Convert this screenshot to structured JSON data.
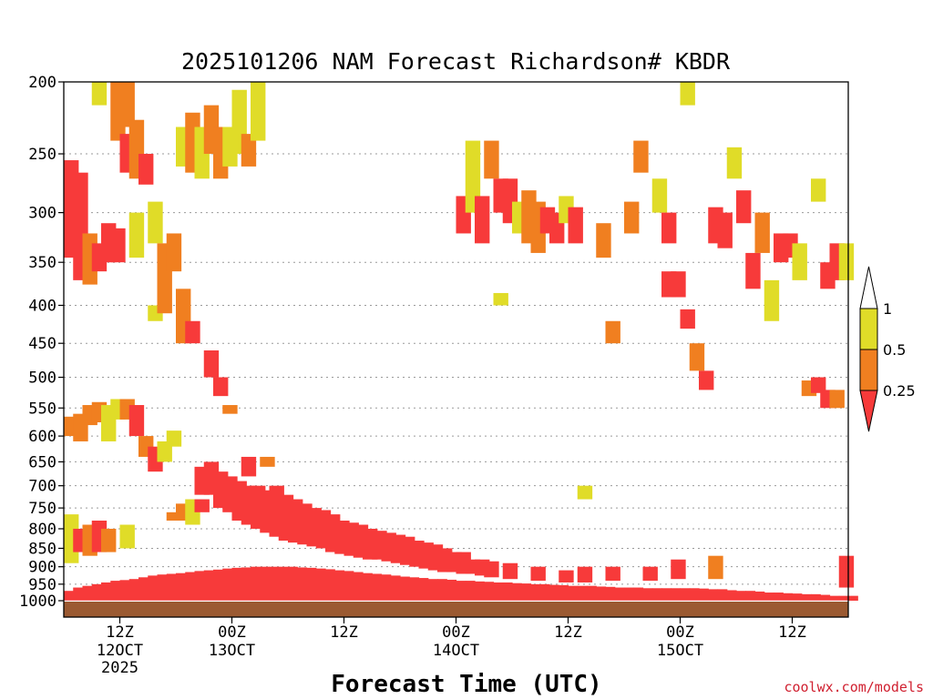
{
  "chart_data": {
    "type": "heatmap",
    "title": "2025101206 NAM Forecast Richardson# KBDR",
    "xlabel": "Forecast Time (UTC)",
    "ylabel": "",
    "credit": "coolwx.com/models",
    "y_axis": {
      "scale": "pressure (hPa), inverted",
      "ylim": [
        1000,
        200
      ],
      "ticks": [
        "200",
        "250",
        "300",
        "350",
        "400",
        "450",
        "500",
        "550",
        "600",
        "650",
        "700",
        "750",
        "800",
        "850",
        "900",
        "950",
        "1000"
      ],
      "tick_values": [
        200,
        250,
        300,
        350,
        400,
        450,
        500,
        550,
        600,
        650,
        700,
        750,
        800,
        850,
        900,
        950,
        1000
      ]
    },
    "x_axis": {
      "xlim_hours": [
        0,
        84
      ],
      "ticks": [
        {
          "hour": 6,
          "label": "12Z",
          "sub": "12OCT",
          "sub2": "2025"
        },
        {
          "hour": 18,
          "label": "00Z",
          "sub": "13OCT"
        },
        {
          "hour": 30,
          "label": "12Z"
        },
        {
          "hour": 42,
          "label": "00Z",
          "sub": "14OCT"
        },
        {
          "hour": 54,
          "label": "12Z"
        },
        {
          "hour": 66,
          "label": "00Z",
          "sub": "15OCT"
        },
        {
          "hour": 78,
          "label": "12Z"
        }
      ]
    },
    "legend": {
      "position": "right",
      "labels": [
        "1",
        "0.5",
        "0.25"
      ],
      "levels": [
        1,
        0.5,
        0.25
      ],
      "colors": [
        "#ffffff",
        "#e0dc28",
        "#f07f20",
        "#f73a3a"
      ]
    },
    "categories_colors": {
      "yellow": "#e0dc28",
      "orange": "#f07f20",
      "red": "#f73a3a",
      "ground": "#9b5a32"
    },
    "cells": [
      {
        "t": 0,
        "p1": 255,
        "p2": 345,
        "c": "red"
      },
      {
        "t": 0,
        "p1": 565,
        "p2": 600,
        "c": "orange"
      },
      {
        "t": 0,
        "p1": 765,
        "p2": 890,
        "c": "yellow"
      },
      {
        "t": 1,
        "p1": 265,
        "p2": 370,
        "c": "red"
      },
      {
        "t": 1,
        "p1": 560,
        "p2": 610,
        "c": "orange"
      },
      {
        "t": 1,
        "p1": 800,
        "p2": 860,
        "c": "red"
      },
      {
        "t": 2,
        "p1": 320,
        "p2": 375,
        "c": "orange"
      },
      {
        "t": 2,
        "p1": 545,
        "p2": 580,
        "c": "orange"
      },
      {
        "t": 2,
        "p1": 790,
        "p2": 870,
        "c": "orange"
      },
      {
        "t": 3,
        "p1": 200,
        "p2": 215,
        "c": "yellow"
      },
      {
        "t": 3,
        "p1": 330,
        "p2": 360,
        "c": "red"
      },
      {
        "t": 3,
        "p1": 540,
        "p2": 575,
        "c": "orange"
      },
      {
        "t": 3,
        "p1": 780,
        "p2": 860,
        "c": "red"
      },
      {
        "t": 4,
        "p1": 310,
        "p2": 350,
        "c": "red"
      },
      {
        "t": 4,
        "p1": 545,
        "p2": 610,
        "c": "yellow"
      },
      {
        "t": 4,
        "p1": 800,
        "p2": 860,
        "c": "orange"
      },
      {
        "t": 5,
        "p1": 200,
        "p2": 240,
        "c": "orange"
      },
      {
        "t": 5,
        "p1": 315,
        "p2": 350,
        "c": "red"
      },
      {
        "t": 5,
        "p1": 535,
        "p2": 570,
        "c": "yellow"
      },
      {
        "t": 6,
        "p1": 200,
        "p2": 230,
        "c": "orange"
      },
      {
        "t": 6,
        "p1": 235,
        "p2": 265,
        "c": "red"
      },
      {
        "t": 6,
        "p1": 535,
        "p2": 570,
        "c": "orange"
      },
      {
        "t": 6,
        "p1": 790,
        "p2": 850,
        "c": "yellow"
      },
      {
        "t": 7,
        "p1": 225,
        "p2": 270,
        "c": "orange"
      },
      {
        "t": 7,
        "p1": 545,
        "p2": 600,
        "c": "red"
      },
      {
        "t": 7,
        "p1": 300,
        "p2": 345,
        "c": "yellow"
      },
      {
        "t": 8,
        "p1": 250,
        "p2": 275,
        "c": "red"
      },
      {
        "t": 8,
        "p1": 600,
        "p2": 640,
        "c": "orange"
      },
      {
        "t": 9,
        "p1": 290,
        "p2": 330,
        "c": "yellow"
      },
      {
        "t": 9,
        "p1": 400,
        "p2": 420,
        "c": "yellow"
      },
      {
        "t": 9,
        "p1": 620,
        "p2": 670,
        "c": "red"
      },
      {
        "t": 10,
        "p1": 330,
        "p2": 410,
        "c": "orange"
      },
      {
        "t": 10,
        "p1": 610,
        "p2": 650,
        "c": "yellow"
      },
      {
        "t": 11,
        "p1": 320,
        "p2": 360,
        "c": "orange"
      },
      {
        "t": 11,
        "p1": 590,
        "p2": 620,
        "c": "yellow"
      },
      {
        "t": 11,
        "p1": 760,
        "p2": 780,
        "c": "orange"
      },
      {
        "t": 12,
        "p1": 230,
        "p2": 260,
        "c": "yellow"
      },
      {
        "t": 12,
        "p1": 380,
        "p2": 450,
        "c": "orange"
      },
      {
        "t": 12,
        "p1": 740,
        "p2": 780,
        "c": "orange"
      },
      {
        "t": 13,
        "p1": 220,
        "p2": 265,
        "c": "orange"
      },
      {
        "t": 13,
        "p1": 420,
        "p2": 450,
        "c": "red"
      },
      {
        "t": 13,
        "p1": 730,
        "p2": 790,
        "c": "yellow"
      },
      {
        "t": 14,
        "p1": 230,
        "p2": 270,
        "c": "yellow"
      },
      {
        "t": 14,
        "p1": 660,
        "p2": 720,
        "c": "red"
      },
      {
        "t": 14,
        "p1": 730,
        "p2": 760,
        "c": "red"
      },
      {
        "t": 15,
        "p1": 215,
        "p2": 250,
        "c": "orange"
      },
      {
        "t": 15,
        "p1": 460,
        "p2": 500,
        "c": "red"
      },
      {
        "t": 15,
        "p1": 650,
        "p2": 720,
        "c": "red"
      },
      {
        "t": 16,
        "p1": 230,
        "p2": 270,
        "c": "orange"
      },
      {
        "t": 16,
        "p1": 500,
        "p2": 530,
        "c": "red"
      },
      {
        "t": 16,
        "p1": 670,
        "p2": 750,
        "c": "red"
      },
      {
        "t": 17,
        "p1": 230,
        "p2": 260,
        "c": "yellow"
      },
      {
        "t": 17,
        "p1": 545,
        "p2": 560,
        "c": "orange"
      },
      {
        "t": 17,
        "p1": 680,
        "p2": 760,
        "c": "red"
      },
      {
        "t": 18,
        "p1": 205,
        "p2": 250,
        "c": "yellow"
      },
      {
        "t": 18,
        "p1": 690,
        "p2": 780,
        "c": "red"
      },
      {
        "t": 19,
        "p1": 235,
        "p2": 260,
        "c": "orange"
      },
      {
        "t": 19,
        "p1": 640,
        "p2": 680,
        "c": "red"
      },
      {
        "t": 19,
        "p1": 700,
        "p2": 790,
        "c": "red"
      },
      {
        "t": 20,
        "p1": 200,
        "p2": 240,
        "c": "yellow"
      },
      {
        "t": 20,
        "p1": 700,
        "p2": 800,
        "c": "red"
      },
      {
        "t": 21,
        "p1": 640,
        "p2": 660,
        "c": "orange"
      },
      {
        "t": 21,
        "p1": 710,
        "p2": 810,
        "c": "red"
      },
      {
        "t": 22,
        "p1": 700,
        "p2": 820,
        "c": "red"
      },
      {
        "t": 23,
        "p1": 720,
        "p2": 830,
        "c": "red"
      },
      {
        "t": 24,
        "p1": 730,
        "p2": 835,
        "c": "red"
      },
      {
        "t": 25,
        "p1": 740,
        "p2": 840,
        "c": "red"
      },
      {
        "t": 26,
        "p1": 750,
        "p2": 845,
        "c": "red"
      },
      {
        "t": 27,
        "p1": 755,
        "p2": 850,
        "c": "red"
      },
      {
        "t": 28,
        "p1": 765,
        "p2": 860,
        "c": "red"
      },
      {
        "t": 29,
        "p1": 780,
        "p2": 865,
        "c": "red"
      },
      {
        "t": 30,
        "p1": 785,
        "p2": 870,
        "c": "red"
      },
      {
        "t": 31,
        "p1": 790,
        "p2": 875,
        "c": "red"
      },
      {
        "t": 32,
        "p1": 800,
        "p2": 880,
        "c": "red"
      },
      {
        "t": 33,
        "p1": 805,
        "p2": 880,
        "c": "red"
      },
      {
        "t": 34,
        "p1": 810,
        "p2": 885,
        "c": "red"
      },
      {
        "t": 35,
        "p1": 815,
        "p2": 890,
        "c": "red"
      },
      {
        "t": 36,
        "p1": 820,
        "p2": 895,
        "c": "red"
      },
      {
        "t": 37,
        "p1": 830,
        "p2": 900,
        "c": "red"
      },
      {
        "t": 38,
        "p1": 835,
        "p2": 905,
        "c": "red"
      },
      {
        "t": 39,
        "p1": 840,
        "p2": 910,
        "c": "red"
      },
      {
        "t": 40,
        "p1": 850,
        "p2": 915,
        "c": "red"
      },
      {
        "t": 41,
        "p1": 860,
        "p2": 915,
        "c": "red"
      },
      {
        "t": 42,
        "p1": 285,
        "p2": 320,
        "c": "red"
      },
      {
        "t": 42,
        "p1": 860,
        "p2": 920,
        "c": "red"
      },
      {
        "t": 43,
        "p1": 240,
        "p2": 300,
        "c": "yellow"
      },
      {
        "t": 43,
        "p1": 880,
        "p2": 920,
        "c": "red"
      },
      {
        "t": 44,
        "p1": 285,
        "p2": 330,
        "c": "red"
      },
      {
        "t": 44,
        "p1": 880,
        "p2": 925,
        "c": "red"
      },
      {
        "t": 45,
        "p1": 240,
        "p2": 270,
        "c": "orange"
      },
      {
        "t": 45,
        "p1": 885,
        "p2": 930,
        "c": "red"
      },
      {
        "t": 46,
        "p1": 270,
        "p2": 300,
        "c": "red"
      },
      {
        "t": 46,
        "p1": 385,
        "p2": 400,
        "c": "yellow"
      },
      {
        "t": 47,
        "p1": 270,
        "p2": 310,
        "c": "red"
      },
      {
        "t": 47,
        "p1": 890,
        "p2": 935,
        "c": "red"
      },
      {
        "t": 48,
        "p1": 290,
        "p2": 320,
        "c": "yellow"
      },
      {
        "t": 49,
        "p1": 280,
        "p2": 330,
        "c": "orange"
      },
      {
        "t": 50,
        "p1": 290,
        "p2": 340,
        "c": "orange"
      },
      {
        "t": 50,
        "p1": 900,
        "p2": 940,
        "c": "red"
      },
      {
        "t": 51,
        "p1": 295,
        "p2": 320,
        "c": "red"
      },
      {
        "t": 52,
        "p1": 300,
        "p2": 330,
        "c": "red"
      },
      {
        "t": 53,
        "p1": 285,
        "p2": 310,
        "c": "yellow"
      },
      {
        "t": 53,
        "p1": 910,
        "p2": 945,
        "c": "red"
      },
      {
        "t": 54,
        "p1": 295,
        "p2": 330,
        "c": "red"
      },
      {
        "t": 55,
        "p1": 700,
        "p2": 730,
        "c": "yellow"
      },
      {
        "t": 55,
        "p1": 900,
        "p2": 945,
        "c": "red"
      },
      {
        "t": 57,
        "p1": 310,
        "p2": 345,
        "c": "orange"
      },
      {
        "t": 58,
        "p1": 420,
        "p2": 450,
        "c": "orange"
      },
      {
        "t": 58,
        "p1": 900,
        "p2": 940,
        "c": "red"
      },
      {
        "t": 60,
        "p1": 290,
        "p2": 320,
        "c": "orange"
      },
      {
        "t": 61,
        "p1": 240,
        "p2": 265,
        "c": "orange"
      },
      {
        "t": 62,
        "p1": 900,
        "p2": 940,
        "c": "red"
      },
      {
        "t": 63,
        "p1": 270,
        "p2": 300,
        "c": "yellow"
      },
      {
        "t": 64,
        "p1": 300,
        "p2": 330,
        "c": "red"
      },
      {
        "t": 64,
        "p1": 360,
        "p2": 390,
        "c": "red"
      },
      {
        "t": 65,
        "p1": 360,
        "p2": 390,
        "c": "red"
      },
      {
        "t": 65,
        "p1": 880,
        "p2": 935,
        "c": "red"
      },
      {
        "t": 66,
        "p1": 200,
        "p2": 215,
        "c": "yellow"
      },
      {
        "t": 66,
        "p1": 405,
        "p2": 430,
        "c": "red"
      },
      {
        "t": 67,
        "p1": 450,
        "p2": 490,
        "c": "orange"
      },
      {
        "t": 68,
        "p1": 490,
        "p2": 520,
        "c": "red"
      },
      {
        "t": 69,
        "p1": 295,
        "p2": 330,
        "c": "red"
      },
      {
        "t": 69,
        "p1": 870,
        "p2": 935,
        "c": "orange"
      },
      {
        "t": 70,
        "p1": 300,
        "p2": 335,
        "c": "red"
      },
      {
        "t": 71,
        "p1": 245,
        "p2": 270,
        "c": "yellow"
      },
      {
        "t": 72,
        "p1": 280,
        "p2": 310,
        "c": "red"
      },
      {
        "t": 73,
        "p1": 340,
        "p2": 380,
        "c": "red"
      },
      {
        "t": 74,
        "p1": 300,
        "p2": 340,
        "c": "orange"
      },
      {
        "t": 75,
        "p1": 370,
        "p2": 420,
        "c": "yellow"
      },
      {
        "t": 76,
        "p1": 320,
        "p2": 350,
        "c": "red"
      },
      {
        "t": 77,
        "p1": 320,
        "p2": 345,
        "c": "red"
      },
      {
        "t": 78,
        "p1": 330,
        "p2": 370,
        "c": "yellow"
      },
      {
        "t": 79,
        "p1": 505,
        "p2": 530,
        "c": "orange"
      },
      {
        "t": 80,
        "p1": 270,
        "p2": 290,
        "c": "yellow"
      },
      {
        "t": 80,
        "p1": 500,
        "p2": 525,
        "c": "red"
      },
      {
        "t": 81,
        "p1": 350,
        "p2": 380,
        "c": "red"
      },
      {
        "t": 81,
        "p1": 520,
        "p2": 550,
        "c": "red"
      },
      {
        "t": 82,
        "p1": 330,
        "p2": 370,
        "c": "red"
      },
      {
        "t": 82,
        "p1": 520,
        "p2": 550,
        "c": "orange"
      },
      {
        "t": 83,
        "p1": 330,
        "p2": 370,
        "c": "yellow"
      },
      {
        "t": 83,
        "p1": 870,
        "p2": 960,
        "c": "red"
      }
    ],
    "surface_band": {
      "color": "red",
      "top_by_hour": [
        970,
        960,
        955,
        950,
        945,
        940,
        938,
        935,
        930,
        925,
        922,
        920,
        918,
        915,
        912,
        910,
        908,
        905,
        903,
        902,
        900,
        900,
        900,
        900,
        900,
        902,
        903,
        905,
        907,
        910,
        912,
        915,
        918,
        920,
        922,
        925,
        928,
        930,
        932,
        935,
        935,
        937,
        940,
        940,
        942,
        943,
        945,
        945,
        947,
        948,
        950,
        950,
        952,
        953,
        955,
        955,
        955,
        957,
        958,
        960,
        960,
        960,
        962,
        962,
        962,
        962,
        962,
        962,
        963,
        965,
        965,
        968,
        970,
        970,
        972,
        975,
        975,
        977,
        978,
        980,
        980,
        982,
        985,
        985,
        985
      ],
      "bottom": 1000
    }
  }
}
